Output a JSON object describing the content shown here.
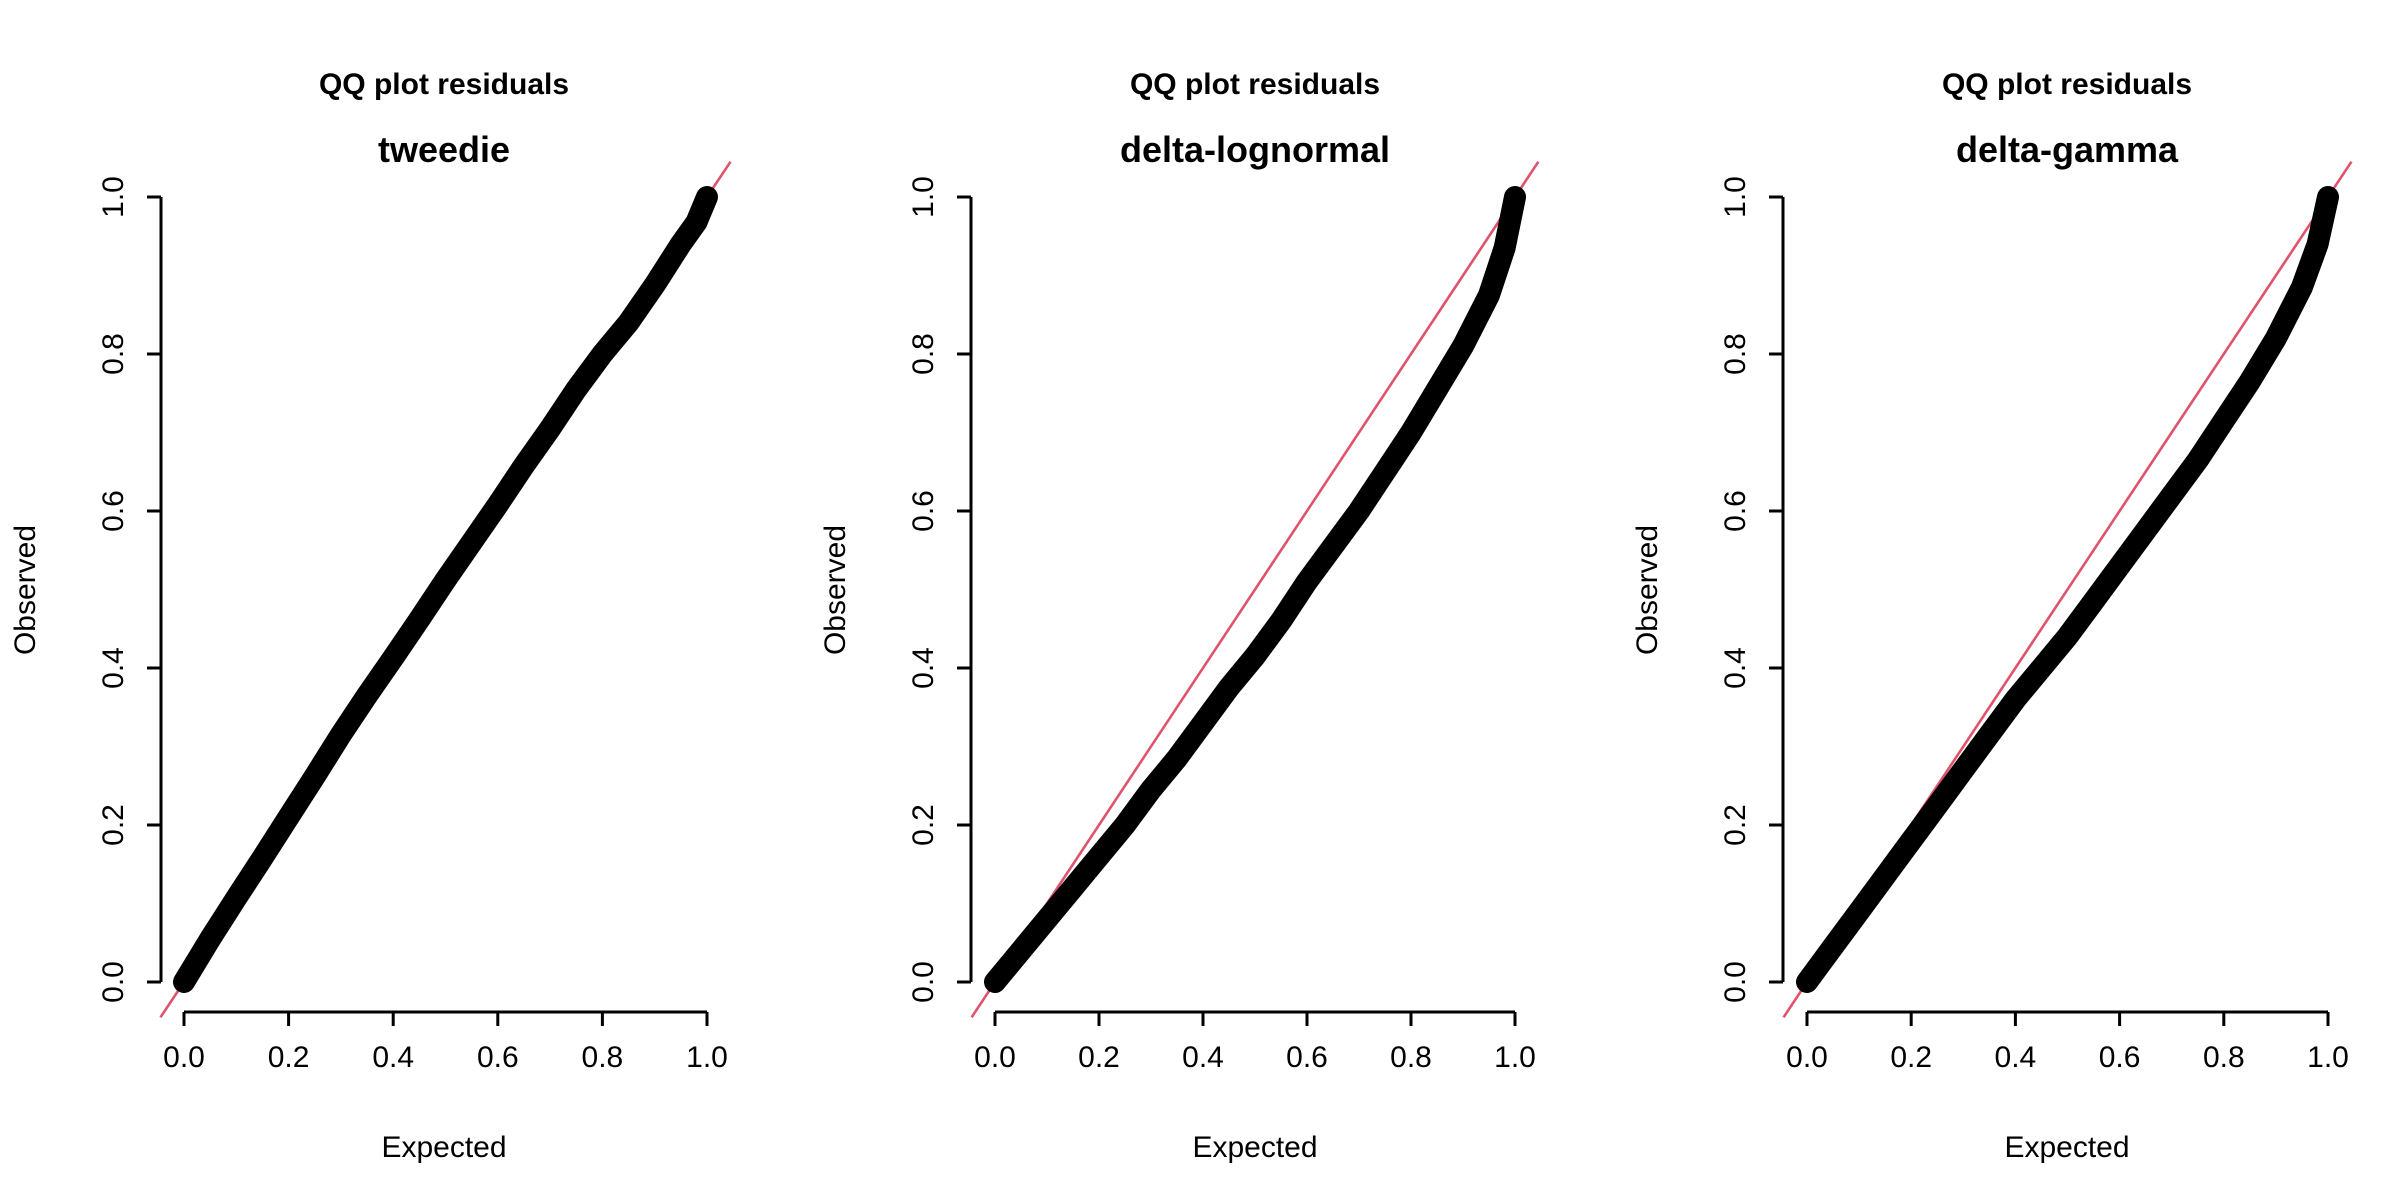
{
  "chart_data": [
    {
      "type": "scatter",
      "subtitle": "QQ plot residuals",
      "title": "tweedie",
      "xlabel": "Expected",
      "ylabel": "Observed",
      "xlim": [
        0,
        1
      ],
      "ylim": [
        0,
        1
      ],
      "xticks": [
        "0.0",
        "0.2",
        "0.4",
        "0.6",
        "0.8",
        "1.0"
      ],
      "yticks": [
        "0.0",
        "0.2",
        "0.4",
        "0.6",
        "0.8",
        "1.0"
      ],
      "reference_line": {
        "intercept": 0,
        "slope": 1,
        "color": "#DF536B"
      },
      "point_color": "#000000",
      "x": [
        0.0,
        0.05,
        0.1,
        0.15,
        0.2,
        0.25,
        0.3,
        0.35,
        0.4,
        0.45,
        0.5,
        0.55,
        0.6,
        0.65,
        0.7,
        0.75,
        0.8,
        0.85,
        0.9,
        0.95,
        0.98,
        1.0
      ],
      "y": [
        0.0,
        0.055,
        0.107,
        0.158,
        0.21,
        0.262,
        0.315,
        0.365,
        0.413,
        0.462,
        0.512,
        0.56,
        0.608,
        0.658,
        0.705,
        0.755,
        0.8,
        0.84,
        0.888,
        0.94,
        0.968,
        1.0
      ]
    },
    {
      "type": "scatter",
      "subtitle": "QQ plot residuals",
      "title": "delta-lognormal",
      "xlabel": "Expected",
      "ylabel": "Observed",
      "xlim": [
        0,
        1
      ],
      "ylim": [
        0,
        1
      ],
      "xticks": [
        "0.0",
        "0.2",
        "0.4",
        "0.6",
        "0.8",
        "1.0"
      ],
      "yticks": [
        "0.0",
        "0.2",
        "0.4",
        "0.6",
        "0.8",
        "1.0"
      ],
      "reference_line": {
        "intercept": 0,
        "slope": 1,
        "color": "#DF536B"
      },
      "point_color": "#000000",
      "x": [
        0.0,
        0.05,
        0.1,
        0.15,
        0.2,
        0.25,
        0.3,
        0.35,
        0.4,
        0.45,
        0.5,
        0.55,
        0.6,
        0.65,
        0.7,
        0.75,
        0.8,
        0.85,
        0.9,
        0.95,
        0.98,
        1.0
      ],
      "y": [
        0.0,
        0.04,
        0.08,
        0.12,
        0.16,
        0.2,
        0.245,
        0.285,
        0.33,
        0.375,
        0.415,
        0.46,
        0.51,
        0.555,
        0.6,
        0.65,
        0.7,
        0.755,
        0.81,
        0.875,
        0.935,
        1.0
      ]
    },
    {
      "type": "scatter",
      "subtitle": "QQ plot residuals",
      "title": "delta-gamma",
      "xlabel": "Expected",
      "ylabel": "Observed",
      "xlim": [
        0,
        1
      ],
      "ylim": [
        0,
        1
      ],
      "xticks": [
        "0.0",
        "0.2",
        "0.4",
        "0.6",
        "0.8",
        "1.0"
      ],
      "yticks": [
        "0.0",
        "0.2",
        "0.4",
        "0.6",
        "0.8",
        "1.0"
      ],
      "reference_line": {
        "intercept": 0,
        "slope": 1,
        "color": "#DF536B"
      },
      "point_color": "#000000",
      "x": [
        0.0,
        0.05,
        0.1,
        0.15,
        0.2,
        0.25,
        0.3,
        0.35,
        0.4,
        0.45,
        0.5,
        0.55,
        0.6,
        0.65,
        0.7,
        0.75,
        0.8,
        0.85,
        0.9,
        0.95,
        0.98,
        1.0
      ],
      "y": [
        0.0,
        0.045,
        0.09,
        0.135,
        0.18,
        0.225,
        0.27,
        0.315,
        0.36,
        0.4,
        0.44,
        0.485,
        0.53,
        0.575,
        0.62,
        0.665,
        0.715,
        0.765,
        0.82,
        0.885,
        0.94,
        1.0
      ]
    }
  ]
}
